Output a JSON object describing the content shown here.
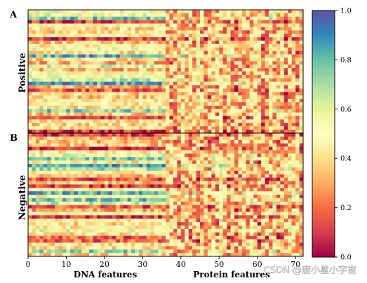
{
  "chart_data": [
    {
      "type": "heatmap",
      "panel_label": "A",
      "ylabel": "Positive",
      "xlabel_segments": [
        "DNA features",
        "Protein features"
      ],
      "xticks": [
        0,
        10,
        20,
        30,
        40,
        50,
        60,
        70
      ],
      "xlim": [
        0,
        72
      ],
      "n_cols": 72,
      "n_rows": 36,
      "feature_split_at": 36,
      "colormap": "Spectral",
      "vmin": 0.0,
      "vmax": 1.0,
      "seed": 11
    },
    {
      "type": "heatmap",
      "panel_label": "B",
      "ylabel": "Negative",
      "xlabel_segments": [
        "DNA features",
        "Protein features"
      ],
      "xticks": [
        0,
        10,
        20,
        30,
        40,
        50,
        60,
        70
      ],
      "xlim": [
        0,
        72
      ],
      "n_cols": 72,
      "n_rows": 36,
      "feature_split_at": 36,
      "colormap": "Spectral",
      "vmin": 0.0,
      "vmax": 1.0,
      "seed": 29
    }
  ],
  "colorbar": {
    "ticks": [
      "0.0",
      "0.2",
      "0.4",
      "0.6",
      "0.8",
      "1.0"
    ],
    "colors": [
      "#9e0142",
      "#d53e4f",
      "#f46d43",
      "#fdae61",
      "#fee08b",
      "#ffffbf",
      "#e6f598",
      "#abdda4",
      "#66c2a5",
      "#3288bd",
      "#5e4fa2"
    ]
  },
  "watermark": "CSDN @唐小星小宇宙"
}
